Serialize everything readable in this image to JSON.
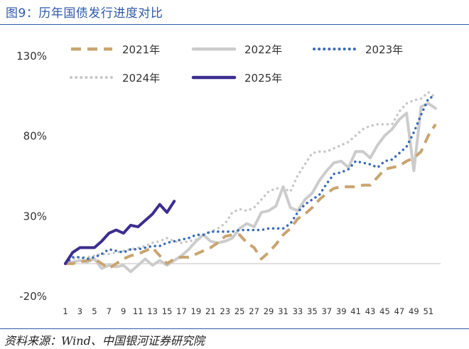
{
  "figure": {
    "title": "图9：历年国债发行进度对比",
    "source": "资料来源：Wind、中国银河证券研究院"
  },
  "chart_data": {
    "type": "line",
    "title": "",
    "xlabel": "",
    "ylabel": "",
    "ylim": [
      -20,
      130
    ],
    "ytick_values": [
      -20,
      30,
      80,
      130
    ],
    "yticks": [
      "-20%",
      "30%",
      "80%",
      "130%"
    ],
    "xlim": [
      1,
      52
    ],
    "xticks": [
      "1",
      "3",
      "5",
      "7",
      "9",
      "11",
      "13",
      "15",
      "17",
      "19",
      "21",
      "23",
      "25",
      "27",
      "29",
      "31",
      "33",
      "35",
      "37",
      "39",
      "41",
      "43",
      "45",
      "47",
      "49",
      "51"
    ],
    "grid": false,
    "legend": "top",
    "colors": {
      "2021年": "#c9a46f",
      "2022年": "#cccccc",
      "2023年": "#3a6bb7",
      "2024年": "#c8c8c8",
      "2025年": "#3b2d8f",
      "zero_line": "#c8c8c8",
      "title": "#2f5aa8"
    },
    "series": [
      {
        "name": "2021年",
        "style": "dashed",
        "x": [
          1,
          2,
          3,
          4,
          5,
          6,
          7,
          8,
          9,
          10,
          11,
          12,
          13,
          14,
          15,
          16,
          17,
          18,
          19,
          20,
          21,
          22,
          23,
          24,
          25,
          26,
          27,
          28,
          29,
          30,
          31,
          32,
          33,
          34,
          35,
          36,
          37,
          38,
          39,
          40,
          41,
          42,
          43,
          44,
          45,
          46,
          47,
          48,
          49,
          50,
          51,
          52
        ],
        "values": [
          0,
          0,
          1,
          2,
          3,
          0,
          -3,
          0,
          3,
          5,
          6,
          8,
          10,
          5,
          0,
          3,
          4,
          4,
          6,
          8,
          10,
          13,
          17,
          18,
          18,
          13,
          10,
          3,
          7,
          12,
          18,
          22,
          28,
          31,
          35,
          40,
          44,
          47,
          48,
          48,
          48,
          49,
          49,
          54,
          59,
          60,
          61,
          64,
          66,
          70,
          80,
          87
        ]
      },
      {
        "name": "2022年",
        "style": "solid",
        "x": [
          1,
          2,
          3,
          4,
          5,
          6,
          7,
          8,
          9,
          10,
          11,
          12,
          13,
          14,
          15,
          16,
          17,
          18,
          19,
          20,
          21,
          22,
          23,
          24,
          25,
          26,
          27,
          28,
          29,
          30,
          31,
          32,
          33,
          34,
          35,
          36,
          37,
          38,
          39,
          40,
          41,
          42,
          43,
          44,
          45,
          46,
          47,
          48,
          49,
          50,
          51,
          52
        ],
        "values": [
          0,
          1,
          2,
          1,
          3,
          -3,
          -1,
          -2,
          -1,
          -5,
          -1,
          3,
          -1,
          2,
          -1,
          2,
          5,
          9,
          14,
          18,
          14,
          13,
          14,
          16,
          22,
          25,
          23,
          32,
          33,
          36,
          48,
          35,
          33,
          40,
          44,
          52,
          58,
          63,
          64,
          60,
          70,
          70,
          66,
          74,
          80,
          84,
          90,
          94,
          58,
          98,
          100,
          97
        ]
      },
      {
        "name": "2023年",
        "style": "dotted",
        "x": [
          1,
          2,
          3,
          4,
          5,
          6,
          7,
          8,
          9,
          10,
          11,
          12,
          13,
          14,
          15,
          16,
          17,
          18,
          19,
          20,
          21,
          22,
          23,
          24,
          25,
          26,
          27,
          28,
          29,
          30,
          31,
          32,
          33,
          34,
          35,
          36,
          37,
          38,
          39,
          40,
          41,
          42,
          43,
          44,
          45,
          46,
          47,
          48,
          49,
          50,
          51,
          52
        ],
        "values": [
          0,
          4,
          4,
          3,
          4,
          6,
          9,
          8,
          7,
          9,
          9,
          10,
          11,
          11,
          13,
          14,
          15,
          16,
          18,
          18,
          20,
          20,
          20,
          20,
          21,
          21,
          21,
          21,
          22,
          22,
          22,
          25,
          32,
          37,
          40,
          43,
          50,
          56,
          57,
          59,
          64,
          63,
          62,
          60,
          64,
          65,
          69,
          73,
          82,
          93,
          103,
          105
        ]
      },
      {
        "name": "2024年",
        "style": "dotted",
        "x": [
          1,
          2,
          3,
          4,
          5,
          6,
          7,
          8,
          9,
          10,
          11,
          12,
          13,
          14,
          15,
          16,
          17,
          18,
          19,
          20,
          21,
          22,
          23,
          24,
          25,
          26,
          27,
          28,
          29,
          30,
          31,
          32,
          33,
          34,
          35,
          36,
          37,
          38,
          39,
          40,
          41,
          42,
          43,
          44,
          45,
          46,
          47,
          48,
          49,
          50,
          51,
          52
        ],
        "values": [
          0,
          3,
          4,
          4,
          5,
          6,
          6,
          7,
          8,
          9,
          10,
          11,
          13,
          14,
          16,
          14,
          13,
          14,
          15,
          18,
          20,
          22,
          25,
          32,
          34,
          33,
          35,
          40,
          45,
          47,
          47,
          45,
          55,
          62,
          69,
          70,
          70,
          72,
          74,
          76,
          80,
          84,
          86,
          87,
          87,
          87,
          95,
          100,
          102,
          103,
          107,
          104
        ]
      },
      {
        "name": "2025年",
        "style": "solid",
        "x": [
          1,
          2,
          3,
          4,
          5,
          6,
          7,
          8,
          9,
          10,
          11,
          12,
          13,
          14,
          15,
          16,
          17
        ],
        "values": [
          0,
          7,
          10,
          10,
          10,
          14,
          19,
          21,
          19,
          24,
          23,
          27,
          31,
          37,
          32,
          39,
          null
        ]
      }
    ]
  }
}
